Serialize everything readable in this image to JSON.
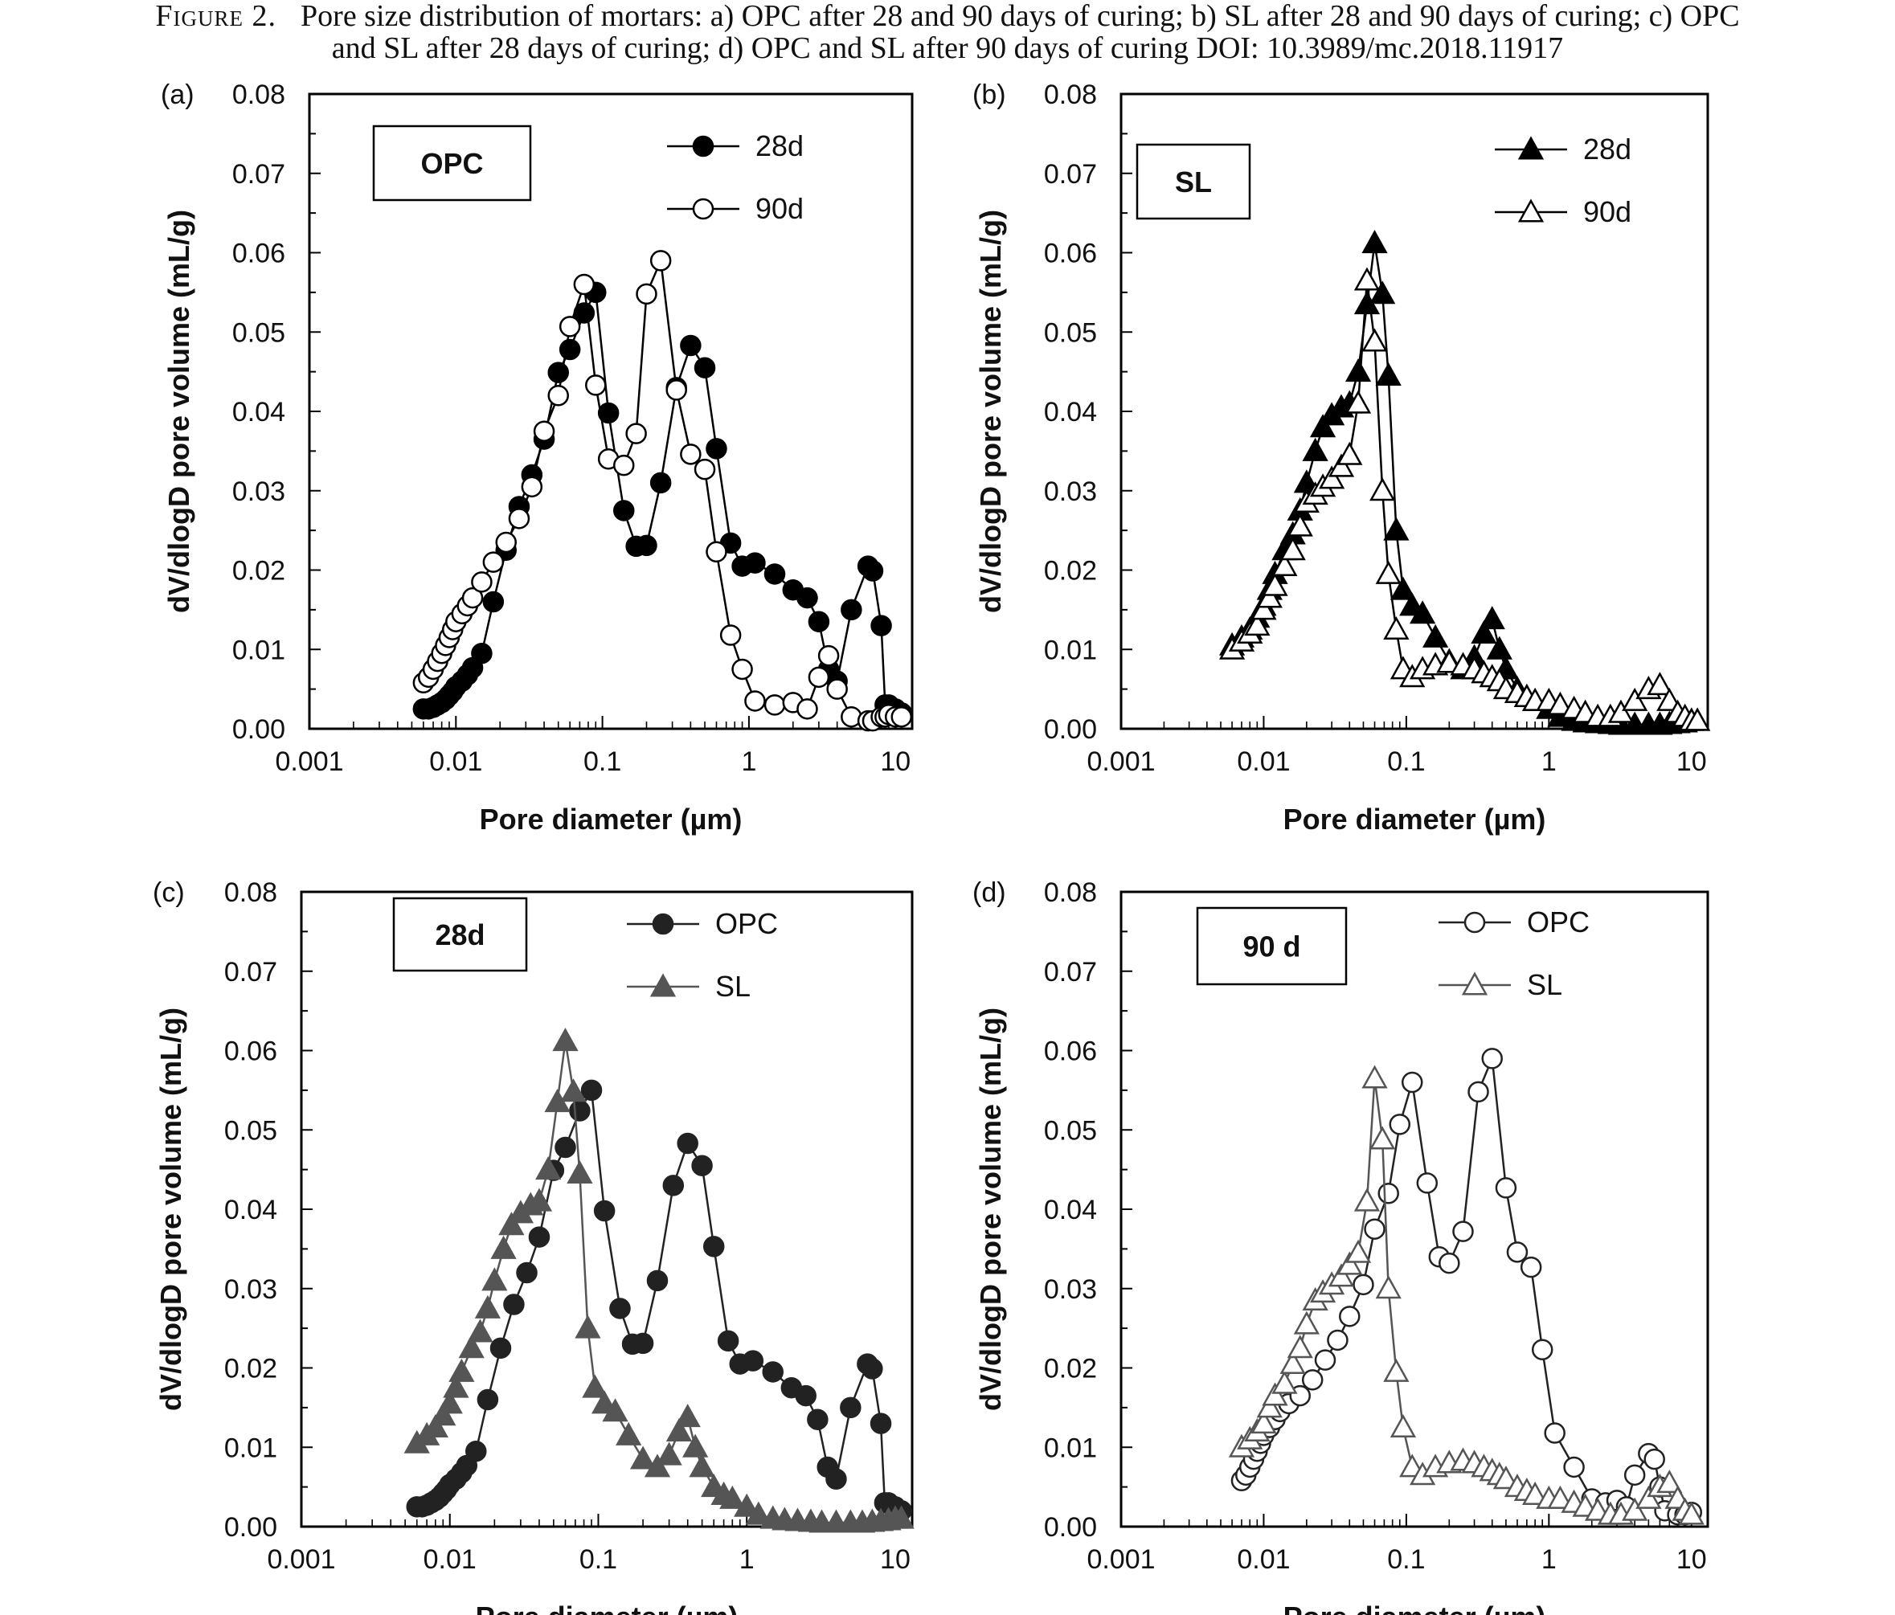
{
  "caption": {
    "label": "Figure 2.",
    "line1": "Pore size distribution of mortars: a) OPC after 28 and 90 days of curing; b) SL after 28 and 90 days of curing; c) OPC",
    "line2": "and SL after 28 days of curing; d) OPC and SL after 90 days of curing DOI: 10.3989/mc.2018.11917"
  },
  "chart_data": [
    {
      "type": "scatter",
      "panel": "(a)",
      "box_label": "OPC",
      "xlabel": "Pore diameter (µm)",
      "ylabel": "dV/dlogD pore volume (mL/g)",
      "xscale": "log",
      "xlim": [
        0.001,
        13
      ],
      "ylim": [
        0,
        0.08
      ],
      "x_ticks": [
        "0.001",
        "0.01",
        "0.1",
        "1",
        "10"
      ],
      "y_ticks": [
        "0.00",
        "0.01",
        "0.02",
        "0.03",
        "0.04",
        "0.05",
        "0.06",
        "0.07",
        "0.08"
      ],
      "legend_position": "top-right",
      "series": [
        {
          "name": "28d",
          "marker": "circle-filled",
          "color": "#000000",
          "x": [
            0.006,
            0.0065,
            0.007,
            0.0075,
            0.008,
            0.0085,
            0.009,
            0.0095,
            0.01,
            0.011,
            0.012,
            0.013,
            0.015,
            0.018,
            0.022,
            0.027,
            0.033,
            0.04,
            0.05,
            0.06,
            0.075,
            0.09,
            0.11,
            0.14,
            0.17,
            0.2,
            0.25,
            0.32,
            0.4,
            0.5,
            0.6,
            0.75,
            0.9,
            1.1,
            1.5,
            2,
            2.5,
            3,
            3.5,
            4,
            5,
            6.5,
            7,
            8,
            8.5,
            9,
            10,
            11
          ],
          "y": [
            0.0025,
            0.0025,
            0.0027,
            0.003,
            0.0033,
            0.0037,
            0.0042,
            0.0047,
            0.0053,
            0.006,
            0.0068,
            0.0077,
            0.0095,
            0.016,
            0.0225,
            0.028,
            0.032,
            0.0365,
            0.0449,
            0.0478,
            0.0524,
            0.055,
            0.0398,
            0.0275,
            0.023,
            0.0231,
            0.031,
            0.043,
            0.0483,
            0.0455,
            0.0353,
            0.0234,
            0.0205,
            0.0209,
            0.0195,
            0.0175,
            0.0165,
            0.0135,
            0.0075,
            0.006,
            0.015,
            0.0205,
            0.0199,
            0.013,
            0.003,
            0.003,
            0.0025,
            0.002
          ]
        },
        {
          "name": "90d",
          "marker": "circle-open",
          "color": "#000000",
          "x": [
            0.006,
            0.0065,
            0.007,
            0.0075,
            0.008,
            0.0085,
            0.009,
            0.0095,
            0.01,
            0.011,
            0.012,
            0.013,
            0.015,
            0.018,
            0.022,
            0.027,
            0.033,
            0.04,
            0.05,
            0.06,
            0.075,
            0.09,
            0.11,
            0.14,
            0.17,
            0.2,
            0.25,
            0.32,
            0.4,
            0.5,
            0.6,
            0.75,
            0.9,
            1.1,
            1.5,
            2,
            2.5,
            3,
            3.5,
            4,
            5,
            6.5,
            7,
            8,
            8.5,
            9,
            10,
            11
          ],
          "y": [
            0.0058,
            0.0065,
            0.0075,
            0.0085,
            0.0095,
            0.0105,
            0.0115,
            0.0125,
            0.0135,
            0.0145,
            0.0155,
            0.0165,
            0.0185,
            0.021,
            0.0235,
            0.0265,
            0.0305,
            0.0375,
            0.042,
            0.0507,
            0.056,
            0.0433,
            0.034,
            0.0332,
            0.0372,
            0.0548,
            0.059,
            0.0427,
            0.0346,
            0.0327,
            0.0223,
            0.0118,
            0.0075,
            0.0035,
            0.003,
            0.0033,
            0.0025,
            0.0065,
            0.0092,
            0.005,
            0.0015,
            0.001,
            0.001,
            0.0015,
            0.0015,
            0.0018,
            0.0015,
            0.0015
          ]
        }
      ]
    },
    {
      "type": "scatter",
      "panel": "(b)",
      "box_label": "SL",
      "xlabel": "Pore diameter (µm)",
      "ylabel": "dV/dlogD pore volume (mL/g)",
      "xscale": "log",
      "xlim": [
        0.001,
        13
      ],
      "ylim": [
        0,
        0.08
      ],
      "x_ticks": [
        "0.001",
        "0.01",
        "0.1",
        "1",
        "10"
      ],
      "y_ticks": [
        "0.00",
        "0.01",
        "0.02",
        "0.03",
        "0.04",
        "0.05",
        "0.06",
        "0.07",
        "0.08"
      ],
      "legend_position": "top-right",
      "series": [
        {
          "name": "28d",
          "marker": "triangle-filled",
          "color": "#000000",
          "x": [
            0.006,
            0.007,
            0.008,
            0.009,
            0.01,
            0.011,
            0.012,
            0.014,
            0.016,
            0.018,
            0.02,
            0.023,
            0.026,
            0.03,
            0.035,
            0.04,
            0.046,
            0.053,
            0.06,
            0.068,
            0.075,
            0.085,
            0.095,
            0.11,
            0.13,
            0.16,
            0.2,
            0.25,
            0.3,
            0.35,
            0.4,
            0.45,
            0.5,
            0.6,
            0.7,
            0.8,
            1,
            1.2,
            1.5,
            1.8,
            2.2,
            2.7,
            3.2,
            4,
            5,
            6,
            7,
            8,
            9,
            10,
            11
          ],
          "y": [
            0.0105,
            0.0115,
            0.0125,
            0.014,
            0.0155,
            0.0175,
            0.0195,
            0.0225,
            0.0245,
            0.0275,
            0.031,
            0.035,
            0.038,
            0.0395,
            0.0405,
            0.041,
            0.045,
            0.0535,
            0.0612,
            0.0548,
            0.0445,
            0.025,
            0.0175,
            0.0155,
            0.0145,
            0.0115,
            0.0085,
            0.0075,
            0.009,
            0.012,
            0.0138,
            0.01,
            0.0075,
            0.005,
            0.004,
            0.0035,
            0.0025,
            0.0015,
            0.001,
            0.0008,
            0.0007,
            0.0006,
            0.0005,
            0.0005,
            0.0005,
            0.0005,
            0.0006,
            0.0007,
            0.0008,
            0.001,
            0.001
          ]
        },
        {
          "name": "90d",
          "marker": "triangle-open",
          "color": "#000000",
          "x": [
            0.006,
            0.007,
            0.008,
            0.009,
            0.01,
            0.011,
            0.012,
            0.014,
            0.016,
            0.018,
            0.02,
            0.023,
            0.026,
            0.03,
            0.035,
            0.04,
            0.046,
            0.053,
            0.06,
            0.068,
            0.075,
            0.085,
            0.095,
            0.11,
            0.13,
            0.16,
            0.2,
            0.25,
            0.3,
            0.35,
            0.4,
            0.45,
            0.5,
            0.6,
            0.7,
            0.8,
            1,
            1.2,
            1.5,
            1.8,
            2.2,
            2.7,
            3.2,
            4,
            5,
            6,
            7,
            8,
            9,
            10,
            11
          ],
          "y": [
            0.01,
            0.011,
            0.012,
            0.013,
            0.015,
            0.0165,
            0.018,
            0.0205,
            0.0225,
            0.0255,
            0.0285,
            0.0295,
            0.0305,
            0.0315,
            0.033,
            0.0345,
            0.041,
            0.0565,
            0.0488,
            0.03,
            0.0195,
            0.0125,
            0.0075,
            0.0065,
            0.0075,
            0.008,
            0.0083,
            0.008,
            0.0075,
            0.007,
            0.0065,
            0.006,
            0.005,
            0.0045,
            0.004,
            0.0035,
            0.0035,
            0.003,
            0.0025,
            0.002,
            0.0015,
            0.0015,
            0.002,
            0.0035,
            0.005,
            0.0055,
            0.0035,
            0.002,
            0.0015,
            0.001,
            0.001
          ]
        }
      ]
    },
    {
      "type": "scatter",
      "panel": "(c)",
      "box_label": "28d",
      "xlabel": "Pore diameter (µm)",
      "ylabel": "dV/dlogD pore volume (mL/g)",
      "xscale": "log",
      "xlim": [
        0.001,
        13
      ],
      "ylim": [
        0,
        0.08
      ],
      "x_ticks": [
        "0.001",
        "0.01",
        "0.1",
        "1",
        "10"
      ],
      "y_ticks": [
        "0.00",
        "0.01",
        "0.02",
        "0.03",
        "0.04",
        "0.05",
        "0.06",
        "0.07",
        "0.08"
      ],
      "legend_position": "top-right",
      "series": [
        {
          "name": "OPC",
          "marker": "circle-filled",
          "color": "#222222",
          "x": [
            0.006,
            0.0065,
            0.007,
            0.0075,
            0.008,
            0.0085,
            0.009,
            0.0095,
            0.01,
            0.011,
            0.012,
            0.013,
            0.015,
            0.018,
            0.022,
            0.027,
            0.033,
            0.04,
            0.05,
            0.06,
            0.075,
            0.09,
            0.11,
            0.14,
            0.17,
            0.2,
            0.25,
            0.32,
            0.4,
            0.5,
            0.6,
            0.75,
            0.9,
            1.1,
            1.5,
            2,
            2.5,
            3,
            3.5,
            4,
            5,
            6.5,
            7,
            8,
            8.5,
            9,
            10,
            11
          ],
          "y": [
            0.0025,
            0.0025,
            0.0027,
            0.003,
            0.0033,
            0.0037,
            0.0042,
            0.0047,
            0.0053,
            0.006,
            0.0068,
            0.0077,
            0.0095,
            0.016,
            0.0225,
            0.028,
            0.032,
            0.0365,
            0.0449,
            0.0478,
            0.0524,
            0.055,
            0.0398,
            0.0275,
            0.023,
            0.0231,
            0.031,
            0.043,
            0.0483,
            0.0455,
            0.0353,
            0.0234,
            0.0205,
            0.0209,
            0.0195,
            0.0175,
            0.0165,
            0.0135,
            0.0075,
            0.006,
            0.015,
            0.0205,
            0.0199,
            0.013,
            0.003,
            0.003,
            0.0025,
            0.002
          ]
        },
        {
          "name": "SL",
          "marker": "triangle-filled",
          "color": "#555555",
          "x": [
            0.006,
            0.007,
            0.008,
            0.009,
            0.01,
            0.011,
            0.012,
            0.014,
            0.016,
            0.018,
            0.02,
            0.023,
            0.026,
            0.03,
            0.035,
            0.04,
            0.046,
            0.053,
            0.06,
            0.068,
            0.075,
            0.085,
            0.095,
            0.11,
            0.13,
            0.16,
            0.2,
            0.25,
            0.3,
            0.35,
            0.4,
            0.45,
            0.5,
            0.6,
            0.7,
            0.8,
            1,
            1.2,
            1.5,
            1.8,
            2.2,
            2.7,
            3.2,
            4,
            5,
            6,
            7,
            8,
            9,
            10,
            11
          ],
          "y": [
            0.0105,
            0.0115,
            0.0125,
            0.014,
            0.0155,
            0.0175,
            0.0195,
            0.0225,
            0.0245,
            0.0275,
            0.031,
            0.035,
            0.038,
            0.0395,
            0.0405,
            0.041,
            0.045,
            0.0535,
            0.0612,
            0.0548,
            0.0445,
            0.025,
            0.0175,
            0.0155,
            0.0145,
            0.0115,
            0.0085,
            0.0075,
            0.009,
            0.012,
            0.0138,
            0.01,
            0.0075,
            0.005,
            0.004,
            0.0035,
            0.0025,
            0.0015,
            0.001,
            0.0008,
            0.0007,
            0.0006,
            0.0005,
            0.0005,
            0.0005,
            0.0005,
            0.0006,
            0.0007,
            0.0008,
            0.001,
            0.001
          ]
        }
      ]
    },
    {
      "type": "scatter",
      "panel": "(d)",
      "box_label": "90 d",
      "xlabel": "Pore diameter (µm)",
      "ylabel": "dV/dlogD pore volume (mL/g)",
      "xscale": "log",
      "xlim": [
        0.001,
        13
      ],
      "ylim": [
        0,
        0.08
      ],
      "x_ticks": [
        "0.001",
        "0.01",
        "0.1",
        "1",
        "10"
      ],
      "y_ticks": [
        "0.00",
        "0.01",
        "0.02",
        "0.03",
        "0.04",
        "0.05",
        "0.06",
        "0.07",
        "0.08"
      ],
      "legend_position": "top-right",
      "series": [
        {
          "name": "OPC",
          "marker": "circle-open",
          "color": "#222222",
          "x": [
            0.007,
            0.0075,
            0.008,
            0.0085,
            0.009,
            0.0095,
            0.01,
            0.011,
            0.012,
            0.013,
            0.015,
            0.018,
            0.022,
            0.027,
            0.033,
            0.04,
            0.05,
            0.06,
            0.075,
            0.09,
            0.11,
            0.14,
            0.17,
            0.2,
            0.25,
            0.32,
            0.4,
            0.5,
            0.6,
            0.75,
            0.9,
            1.1,
            1.5,
            2,
            2.5,
            3,
            3.5,
            4,
            5,
            5.5,
            6,
            6.5,
            8,
            9,
            10
          ],
          "y": [
            0.0058,
            0.0065,
            0.0075,
            0.0085,
            0.0095,
            0.0105,
            0.0115,
            0.0125,
            0.0135,
            0.0145,
            0.0155,
            0.0165,
            0.0185,
            0.021,
            0.0235,
            0.0265,
            0.0305,
            0.0375,
            0.042,
            0.0507,
            0.056,
            0.0433,
            0.034,
            0.0332,
            0.0372,
            0.0548,
            0.059,
            0.0427,
            0.0346,
            0.0327,
            0.0223,
            0.0118,
            0.0075,
            0.0035,
            0.003,
            0.0033,
            0.0025,
            0.0065,
            0.0092,
            0.0085,
            0.005,
            0.002,
            0.0015,
            0.0015,
            0.0018
          ]
        },
        {
          "name": "SL",
          "marker": "triangle-open",
          "color": "#555555",
          "x": [
            0.007,
            0.008,
            0.009,
            0.01,
            0.011,
            0.012,
            0.014,
            0.016,
            0.018,
            0.02,
            0.023,
            0.026,
            0.03,
            0.035,
            0.04,
            0.046,
            0.053,
            0.06,
            0.068,
            0.075,
            0.085,
            0.095,
            0.11,
            0.13,
            0.16,
            0.2,
            0.25,
            0.3,
            0.35,
            0.4,
            0.45,
            0.5,
            0.6,
            0.7,
            0.8,
            1,
            1.2,
            1.5,
            1.8,
            2.2,
            2.7,
            3.2,
            4,
            5,
            6,
            7,
            8,
            9,
            10
          ],
          "y": [
            0.01,
            0.011,
            0.012,
            0.013,
            0.015,
            0.0165,
            0.018,
            0.0205,
            0.0225,
            0.0255,
            0.0285,
            0.0295,
            0.0305,
            0.0315,
            0.033,
            0.0345,
            0.041,
            0.0565,
            0.0488,
            0.03,
            0.0195,
            0.0125,
            0.0075,
            0.0065,
            0.0075,
            0.008,
            0.0083,
            0.008,
            0.0075,
            0.007,
            0.0065,
            0.006,
            0.005,
            0.0045,
            0.004,
            0.0035,
            0.0035,
            0.003,
            0.0025,
            0.002,
            0.0015,
            0.0015,
            0.002,
            0.0035,
            0.005,
            0.0055,
            0.0035,
            0.002,
            0.0015
          ]
        }
      ]
    }
  ]
}
